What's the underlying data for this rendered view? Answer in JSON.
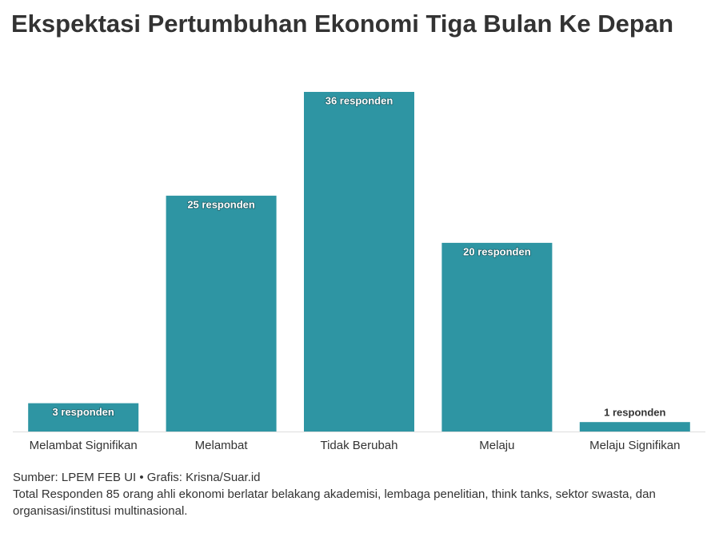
{
  "chart_data": {
    "type": "bar",
    "title": "Ekspektasi Pertumbuhan Ekonomi Tiga Bulan Ke Depan",
    "categories": [
      "Melambat Signifikan",
      "Melambat",
      "Tidak Berubah",
      "Melaju",
      "Melaju Signifikan"
    ],
    "values": [
      3,
      25,
      36,
      20,
      1
    ],
    "value_labels": [
      "3 responden",
      "25 responden",
      "36 responden",
      "20 responden",
      "1 responden"
    ],
    "color": "#2e95a3",
    "source": "Sumber: LPEM FEB UI • Grafis: Krisna/Suar.id",
    "note": "Total Responden 85 orang ahli ekonomi berlatar belakang akademisi, lembaga penelitian, think tanks, sektor swasta, dan organisasi/institusi multinasional."
  }
}
